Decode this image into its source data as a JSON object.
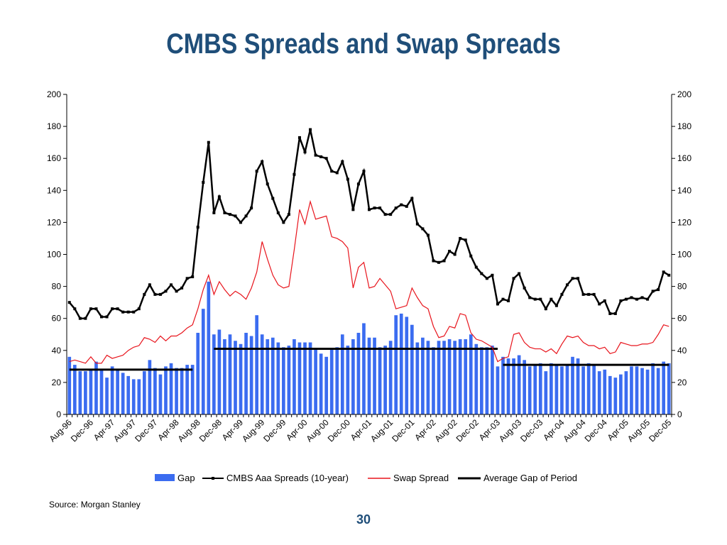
{
  "chart_data": {
    "type": "bar+line",
    "title": "CMBS Spreads and Swap Spreads",
    "ylim": [
      0,
      200
    ],
    "yticks": [
      0,
      20,
      40,
      60,
      80,
      100,
      120,
      140,
      160,
      180,
      200
    ],
    "yticks_right": [
      0,
      20,
      40,
      60,
      80,
      100,
      120,
      140,
      160,
      180,
      200
    ],
    "x_tick_labels": [
      "Aug-96",
      "Dec-96",
      "Apr-97",
      "Aug-97",
      "Dec-97",
      "Apr-98",
      "Aug-98",
      "Dec-98",
      "Apr-99",
      "Aug-99",
      "Dec-99",
      "Apr-00",
      "Aug-00",
      "Dec-00",
      "Apr-01",
      "Aug-01",
      "Dec-01",
      "Apr-02",
      "Aug-02",
      "Dec-02",
      "Apr-03",
      "Aug-03",
      "Dec-03",
      "Apr-04",
      "Aug-04",
      "Dec-04",
      "Apr-05",
      "Aug-05",
      "Dec-05"
    ],
    "series": [
      {
        "name": "Gap",
        "kind": "bar",
        "color": "#3b6cf0",
        "values": [
          36,
          31,
          27,
          27,
          28,
          33,
          28,
          23,
          30,
          28,
          26,
          24,
          22,
          22,
          27,
          34,
          29,
          25,
          30,
          32,
          29,
          29,
          31,
          31,
          51,
          66,
          83,
          50,
          53,
          47,
          50,
          46,
          44,
          51,
          49,
          62,
          50,
          47,
          48,
          45,
          42,
          43,
          47,
          45,
          45,
          45,
          41,
          38,
          36,
          41,
          42,
          50,
          43,
          47,
          51,
          57,
          48,
          48,
          42,
          43,
          46,
          62,
          63,
          61,
          56,
          45,
          48,
          46,
          42,
          46,
          46,
          47,
          46,
          47,
          47,
          50,
          44,
          42,
          42,
          43,
          30,
          36,
          35,
          35,
          37,
          34,
          30,
          31,
          32,
          27,
          32,
          31,
          30,
          31,
          36,
          35,
          30,
          32,
          31,
          27,
          28,
          24,
          23,
          25,
          27,
          30,
          30,
          29,
          28,
          32,
          29,
          33,
          32
        ]
      },
      {
        "name": "CMBS Aaa Spreads (10-year)",
        "kind": "line-marker",
        "color": "#000000",
        "values": [
          70,
          66,
          60,
          60,
          66,
          66,
          61,
          61,
          66,
          66,
          64,
          64,
          64,
          66,
          75,
          81,
          75,
          75,
          77,
          81,
          77,
          79,
          85,
          86,
          117,
          145,
          170,
          126,
          136,
          126,
          125,
          124,
          120,
          124,
          129,
          152,
          158,
          144,
          135,
          126,
          120,
          125,
          150,
          173,
          164,
          178,
          162,
          161,
          160,
          152,
          151,
          158,
          147,
          128,
          144,
          152,
          128,
          129,
          129,
          125,
          125,
          129,
          131,
          130,
          135,
          119,
          116,
          112,
          96,
          95,
          96,
          102,
          100,
          110,
          109,
          99,
          92,
          88,
          85,
          87,
          69,
          72,
          71,
          85,
          88,
          79,
          73,
          72,
          72,
          66,
          72,
          68,
          75,
          81,
          85,
          85,
          75,
          75,
          75,
          69,
          71,
          63,
          63,
          71,
          72,
          73,
          72,
          73,
          72,
          77,
          78,
          89,
          87
        ]
      },
      {
        "name": "Swap Spread",
        "kind": "line",
        "color": "#e8141c",
        "values": [
          33,
          34,
          33,
          32,
          36,
          32,
          32,
          37,
          35,
          36,
          37,
          40,
          42,
          43,
          48,
          47,
          45,
          49,
          46,
          49,
          49,
          51,
          54,
          56,
          66,
          78,
          87,
          75,
          83,
          78,
          74,
          77,
          75,
          72,
          79,
          89,
          108,
          97,
          87,
          81,
          79,
          80,
          103,
          128,
          119,
          133,
          122,
          123,
          124,
          111,
          110,
          108,
          104,
          79,
          92,
          95,
          79,
          80,
          85,
          81,
          77,
          66,
          67,
          68,
          79,
          73,
          68,
          66,
          55,
          48,
          49,
          55,
          54,
          63,
          62,
          51,
          47,
          46,
          44,
          42,
          33,
          35,
          36,
          50,
          51,
          45,
          42,
          41,
          41,
          39,
          41,
          38,
          44,
          49,
          48,
          49,
          45,
          43,
          43,
          41,
          42,
          38,
          39,
          45,
          44,
          43,
          43,
          44,
          44,
          45,
          50,
          56,
          55
        ]
      },
      {
        "name": "Average Gap of Period",
        "kind": "segment",
        "color": "#000000",
        "segments": [
          {
            "from_index": 0,
            "to_index": 23,
            "value": 28
          },
          {
            "from_index": 27,
            "to_index": 80,
            "value": 41
          },
          {
            "from_index": 81,
            "to_index": 112,
            "value": 31
          }
        ]
      }
    ],
    "legend": [
      "Gap",
      "CMBS Aaa Spreads (10-year)",
      "Swap Spread",
      "Average Gap of Period"
    ],
    "legend_position": "bottom",
    "grid": false
  },
  "footer": {
    "source": "Source: Morgan Stanley",
    "page": "30"
  }
}
